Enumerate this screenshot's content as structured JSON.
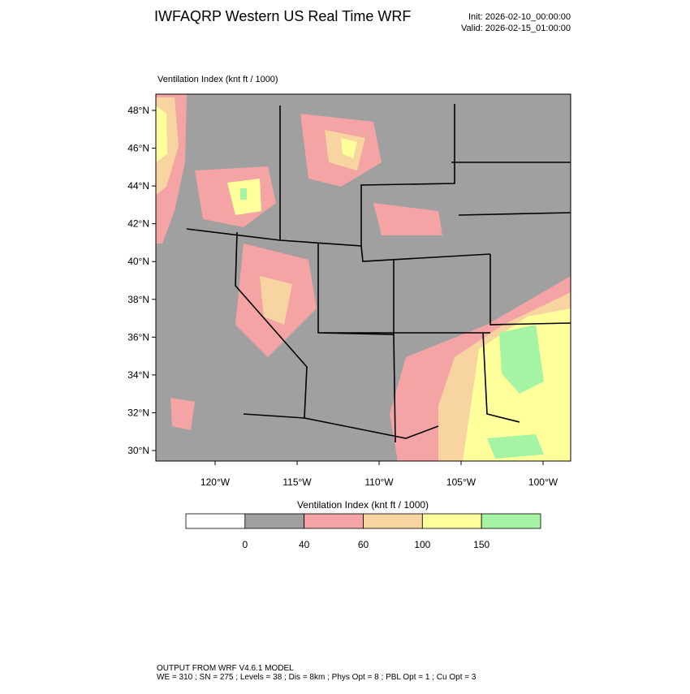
{
  "header": {
    "title": "IWFAQRP Western US Real Time WRF",
    "init": "Init: 2026-02-10_00:00:00",
    "valid": "Valid: 2026-02-15_01:00:00"
  },
  "map": {
    "title": "Ventilation Index   (knt ft / 1000)",
    "lat_ticks": [
      {
        "value": 48,
        "label": "48°N"
      },
      {
        "value": 46,
        "label": "46°N"
      },
      {
        "value": 44,
        "label": "44°N"
      },
      {
        "value": 42,
        "label": "42°N"
      },
      {
        "value": 40,
        "label": "40°N"
      },
      {
        "value": 38,
        "label": "38°N"
      },
      {
        "value": 36,
        "label": "36°N"
      },
      {
        "value": 34,
        "label": "34°N"
      },
      {
        "value": 32,
        "label": "32°N"
      },
      {
        "value": 30,
        "label": "30°N"
      }
    ],
    "lon_ticks": [
      {
        "value": -120,
        "label": "120°W"
      },
      {
        "value": -115,
        "label": "115°W"
      },
      {
        "value": -110,
        "label": "110°W"
      },
      {
        "value": -105,
        "label": "105°W"
      },
      {
        "value": -100,
        "label": "100°W"
      }
    ]
  },
  "colorbar": {
    "title": "Ventilation Index   (knt ft / 1000)",
    "levels": [
      0,
      40,
      60,
      100,
      150
    ],
    "colors": [
      "#ffffff",
      "#a0a0a0",
      "#f4a4a4",
      "#f8d4a0",
      "#ffff9c",
      "#a4f4a4"
    ]
  },
  "footer": {
    "lines": [
      "OUTPUT FROM WRF V4.6.1 MODEL",
      "WE = 310 ; SN = 275 ; Levels = 38 ; Dis = 8km ; Phys Opt = 8 ; PBL Opt = 1 ; Cu Opt = 3"
    ]
  }
}
